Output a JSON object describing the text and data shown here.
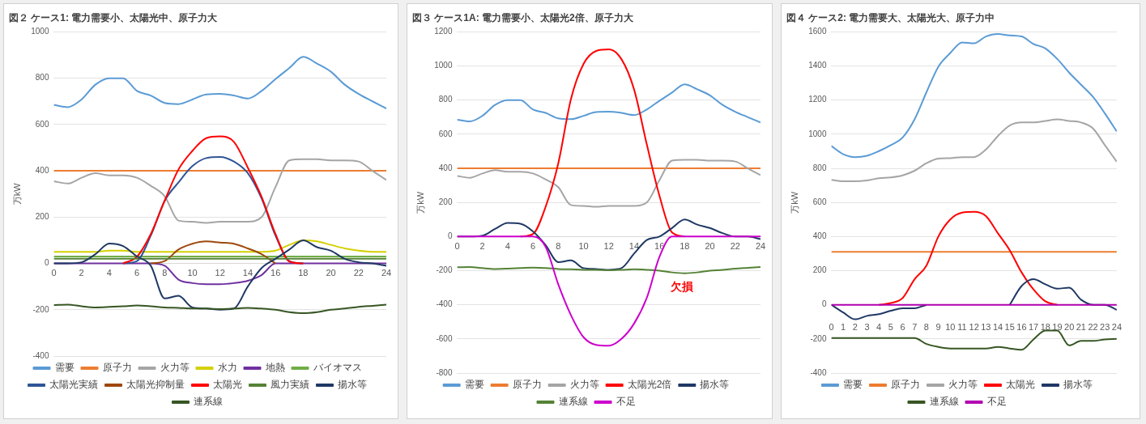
{
  "chart_data": [
    {
      "type": "line",
      "title": "図２ ケース1: 電力需要小、太陽光中、原子力大",
      "ylabel": "万kW",
      "x": [
        0,
        1,
        2,
        3,
        4,
        5,
        6,
        7,
        8,
        9,
        10,
        11,
        12,
        13,
        14,
        15,
        16,
        17,
        18,
        19,
        20,
        21,
        22,
        23,
        24
      ],
      "xlim": [
        0,
        24
      ],
      "xticks": [
        0,
        2,
        4,
        6,
        8,
        10,
        12,
        14,
        16,
        18,
        20,
        22,
        24
      ],
      "ylim": [
        -400,
        1000
      ],
      "yticks": [
        -400,
        -200,
        0,
        200,
        400,
        600,
        800,
        1000
      ],
      "grid": "y",
      "legend": "bottom",
      "marker": "none",
      "line_style": "solid",
      "series": [
        {
          "name": "需要",
          "color": "#5b9bd5",
          "values": [
            685,
            675,
            708,
            772,
            800,
            800,
            745,
            725,
            693,
            688,
            708,
            730,
            732,
            725,
            712,
            745,
            796,
            844,
            892,
            863,
            828,
            772,
            732,
            700,
            669
          ]
        },
        {
          "name": "原子力",
          "color": "#ed7d31",
          "values": [
            400,
            400,
            400,
            400,
            400,
            400,
            400,
            400,
            400,
            400,
            400,
            400,
            400,
            400,
            400,
            400,
            400,
            400,
            400,
            400,
            400,
            400,
            400,
            400,
            400
          ]
        },
        {
          "name": "火力等",
          "color": "#a5a5a5",
          "values": [
            355,
            345,
            370,
            390,
            380,
            380,
            370,
            335,
            290,
            185,
            180,
            175,
            180,
            180,
            180,
            200,
            330,
            445,
            450,
            450,
            445,
            445,
            440,
            400,
            360
          ]
        },
        {
          "name": "水力",
          "color": "#d4d000",
          "values": [
            50,
            50,
            50,
            50,
            55,
            55,
            50,
            50,
            50,
            50,
            50,
            50,
            50,
            50,
            50,
            50,
            55,
            80,
            100,
            95,
            80,
            65,
            55,
            50,
            50
          ]
        },
        {
          "name": "地熱",
          "color": "#7030a0",
          "values": [
            0,
            0,
            0,
            0,
            0,
            0,
            0,
            0,
            -10,
            -70,
            -85,
            -90,
            -90,
            -85,
            -75,
            -50,
            0,
            0,
            0,
            0,
            0,
            0,
            0,
            0,
            0
          ]
        },
        {
          "name": "バイオマス",
          "color": "#70ad47",
          "values": [
            30,
            30,
            30,
            30,
            30,
            30,
            30,
            30,
            30,
            30,
            30,
            30,
            30,
            30,
            30,
            30,
            30,
            30,
            30,
            30,
            30,
            30,
            30,
            30,
            30
          ]
        },
        {
          "name": "太陽光実績",
          "color": "#2f5597",
          "values": [
            null,
            null,
            null,
            null,
            null,
            0,
            10,
            120,
            270,
            350,
            420,
            455,
            460,
            440,
            390,
            280,
            120,
            10,
            0,
            null,
            null,
            null,
            null,
            null,
            null
          ]
        },
        {
          "name": "太陽光抑制量",
          "color": "#9e480e",
          "values": [
            null,
            null,
            null,
            null,
            null,
            null,
            null,
            0,
            10,
            60,
            85,
            95,
            90,
            85,
            65,
            40,
            0,
            null,
            null,
            null,
            null,
            null,
            null,
            null,
            null
          ]
        },
        {
          "name": "太陽光",
          "color": "#ff0000",
          "values": [
            null,
            null,
            null,
            null,
            null,
            0,
            29,
            127,
            271,
            406,
            486,
            541,
            549,
            525,
            414,
            287,
            127,
            8,
            0,
            null,
            null,
            null,
            null,
            null,
            null
          ]
        },
        {
          "name": "風力実績",
          "color": "#548235",
          "values": [
            20,
            20,
            20,
            20,
            20,
            20,
            20,
            20,
            20,
            20,
            20,
            20,
            20,
            20,
            20,
            20,
            20,
            20,
            20,
            20,
            20,
            20,
            20,
            20,
            20
          ]
        },
        {
          "name": "揚水等",
          "color": "#1f3864",
          "values": [
            0,
            0,
            5,
            40,
            86,
            75,
            30,
            -10,
            -151,
            -140,
            -190,
            -195,
            -200,
            -195,
            -100,
            -20,
            20,
            60,
            100,
            70,
            55,
            20,
            5,
            0,
            -10
          ]
        },
        {
          "name": "連系線",
          "color": "#375623",
          "values": [
            -180,
            -178,
            -185,
            -190,
            -188,
            -185,
            -182,
            -185,
            -190,
            -192,
            -195,
            -195,
            -197,
            -195,
            -192,
            -195,
            -200,
            -210,
            -215,
            -210,
            -200,
            -195,
            -188,
            -183,
            -178
          ]
        }
      ]
    },
    {
      "type": "line",
      "title": "図３ ケース1A: 電力需要小、太陽光2倍、原子力大",
      "ylabel": "万kW",
      "x": [
        0,
        1,
        2,
        3,
        4,
        5,
        6,
        7,
        8,
        9,
        10,
        11,
        12,
        13,
        14,
        15,
        16,
        17,
        18,
        19,
        20,
        21,
        22,
        23,
        24
      ],
      "xlim": [
        0,
        24
      ],
      "xticks": [
        0,
        2,
        4,
        6,
        8,
        10,
        12,
        14,
        16,
        18,
        20,
        22,
        24
      ],
      "ylim": [
        -800,
        1200
      ],
      "yticks": [
        -800,
        -600,
        -400,
        -200,
        0,
        200,
        400,
        600,
        800,
        1000,
        1200
      ],
      "grid": "y",
      "legend": "bottom",
      "marker": "none",
      "line_style": "solid",
      "annotations": [
        "欠損"
      ],
      "series": [
        {
          "name": "需要",
          "color": "#5b9bd5",
          "values": [
            685,
            675,
            708,
            772,
            800,
            800,
            745,
            725,
            693,
            688,
            708,
            730,
            732,
            725,
            712,
            745,
            796,
            844,
            892,
            863,
            828,
            772,
            732,
            700,
            669
          ]
        },
        {
          "name": "原子力",
          "color": "#ed7d31",
          "values": [
            400,
            400,
            400,
            400,
            400,
            400,
            400,
            400,
            400,
            400,
            400,
            400,
            400,
            400,
            400,
            400,
            400,
            400,
            400,
            400,
            400,
            400,
            400,
            400,
            400
          ]
        },
        {
          "name": "火力等",
          "color": "#a5a5a5",
          "values": [
            355,
            345,
            370,
            390,
            380,
            380,
            370,
            335,
            290,
            185,
            180,
            175,
            180,
            180,
            180,
            200,
            330,
            445,
            450,
            450,
            445,
            445,
            440,
            400,
            360
          ]
        },
        {
          "name": "太陽光2倍",
          "color": "#ff0000",
          "values": [
            null,
            null,
            null,
            null,
            null,
            0,
            15,
            175,
            429,
            805,
            1012,
            1088,
            1097,
            1040,
            862,
            542,
            241,
            24,
            0,
            null,
            null,
            null,
            null,
            null,
            null
          ]
        },
        {
          "name": "揚水等",
          "color": "#1f3864",
          "values": [
            0,
            0,
            5,
            45,
            80,
            75,
            30,
            -50,
            -150,
            -140,
            -185,
            -190,
            -195,
            -185,
            -100,
            -20,
            0,
            50,
            100,
            70,
            50,
            20,
            0,
            0,
            -15
          ]
        },
        {
          "name": "連系線",
          "color": "#548235",
          "values": [
            -180,
            -178,
            -185,
            -190,
            -188,
            -185,
            -182,
            -185,
            -190,
            -192,
            -195,
            -195,
            -197,
            -195,
            -192,
            -195,
            -200,
            -210,
            -215,
            -210,
            -200,
            -195,
            -188,
            -183,
            -178
          ]
        },
        {
          "name": "不足",
          "color": "#cc00cc",
          "values": [
            0,
            0,
            0,
            0,
            0,
            0,
            0,
            -60,
            -280,
            -460,
            -590,
            -635,
            -640,
            -600,
            -510,
            -360,
            -120,
            0,
            0,
            0,
            0,
            0,
            0,
            0,
            0
          ]
        }
      ]
    },
    {
      "type": "line",
      "title": "図４ ケース2: 電力需要大、太陽光大、原子力中",
      "ylabel": "万kW",
      "x": [
        0,
        1,
        2,
        3,
        4,
        5,
        6,
        7,
        8,
        9,
        10,
        11,
        12,
        13,
        14,
        15,
        16,
        17,
        18,
        19,
        20,
        21,
        22,
        23,
        24
      ],
      "xlim": [
        0,
        24
      ],
      "xticks": [
        0,
        1,
        2,
        3,
        4,
        5,
        6,
        7,
        8,
        9,
        10,
        11,
        12,
        13,
        14,
        15,
        16,
        17,
        18,
        19,
        20,
        21,
        22,
        23,
        24
      ],
      "ylim": [
        -400,
        1600
      ],
      "yticks": [
        -400,
        -200,
        0,
        200,
        400,
        600,
        800,
        1000,
        1200,
        1400,
        1600
      ],
      "grid": "y",
      "legend": "bottom",
      "marker": "none",
      "line_style": "solid",
      "series": [
        {
          "name": "需要",
          "color": "#5b9bd5",
          "values": [
            931,
            883,
            866,
            874,
            901,
            936,
            981,
            1087,
            1246,
            1396,
            1476,
            1538,
            1533,
            1573,
            1588,
            1579,
            1573,
            1529,
            1503,
            1441,
            1361,
            1290,
            1219,
            1122,
            1016
          ]
        },
        {
          "name": "原子力",
          "color": "#ed7d31",
          "values": [
            310,
            310,
            310,
            310,
            310,
            310,
            310,
            310,
            310,
            310,
            310,
            310,
            310,
            310,
            310,
            310,
            310,
            310,
            310,
            310,
            310,
            310,
            310,
            310,
            310
          ]
        },
        {
          "name": "火力等",
          "color": "#a5a5a5",
          "values": [
            733,
            724,
            724,
            729,
            742,
            747,
            759,
            786,
            830,
            857,
            860,
            866,
            866,
            910,
            989,
            1051,
            1069,
            1069,
            1078,
            1087,
            1078,
            1069,
            1034,
            936,
            839
          ]
        },
        {
          "name": "太陽光",
          "color": "#ff0000",
          "values": [
            null,
            null,
            null,
            null,
            0,
            10,
            40,
            150,
            230,
            400,
            500,
            540,
            545,
            520,
            420,
            320,
            190,
            90,
            20,
            0,
            null,
            null,
            null,
            null,
            null
          ]
        },
        {
          "name": "揚水等",
          "color": "#1f3864",
          "values": [
            0,
            -45,
            -85,
            -65,
            -55,
            -35,
            -20,
            -20,
            0,
            null,
            null,
            null,
            null,
            null,
            null,
            0,
            110,
            150,
            120,
            95,
            100,
            30,
            0,
            0,
            -30
          ]
        },
        {
          "name": "連系線",
          "color": "#375623",
          "values": [
            -195,
            -195,
            -195,
            -195,
            -195,
            -195,
            -195,
            -195,
            -230,
            -247,
            -256,
            -256,
            -256,
            -256,
            -247,
            -256,
            -264,
            -203,
            -151,
            -151,
            -238,
            -212,
            -212,
            -203,
            -200
          ]
        },
        {
          "name": "不足",
          "color": "#b000b0",
          "values": [
            0,
            0,
            0,
            0,
            0,
            0,
            0,
            0,
            0,
            0,
            0,
            0,
            0,
            0,
            0,
            0,
            0,
            0,
            0,
            0,
            0,
            0,
            0,
            0,
            0
          ]
        }
      ]
    }
  ]
}
